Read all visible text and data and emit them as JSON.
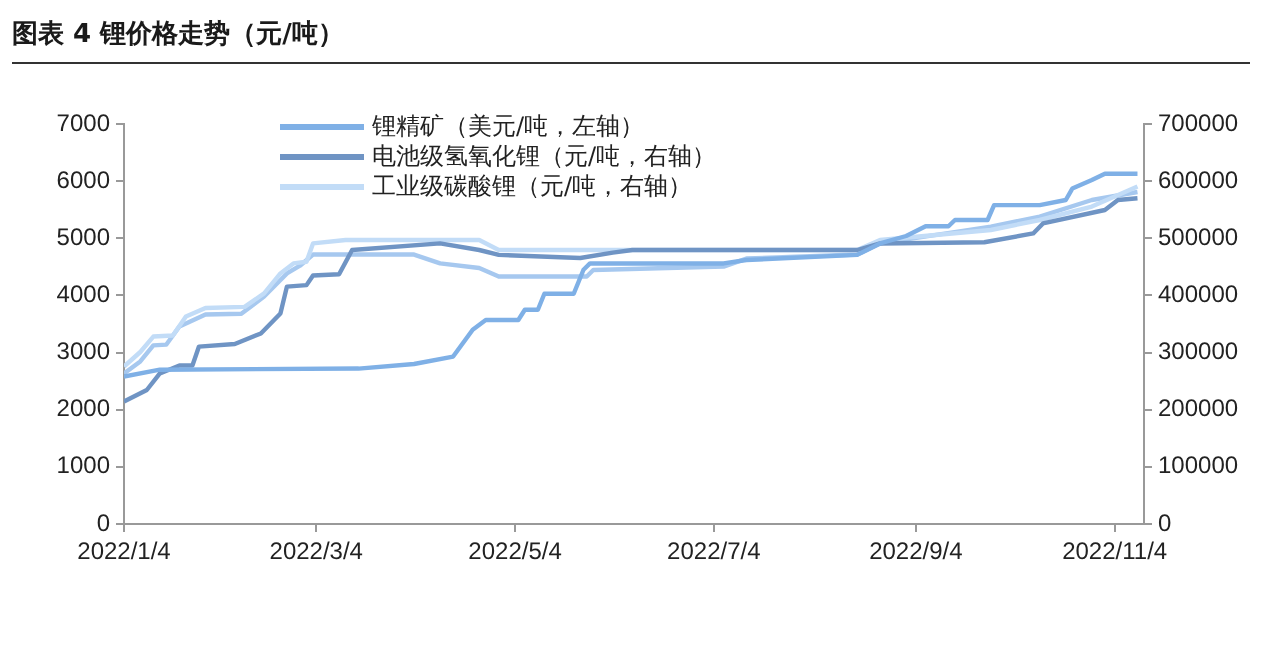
{
  "chart_data": {
    "type": "line",
    "title": "图表 4 锂价格走势（元/吨）",
    "xlim": [
      "2022-01-04",
      "2022-11-13"
    ],
    "xticks": [
      {
        "value": "2022-01-04",
        "label": "2022/1/4"
      },
      {
        "value": "2022-03-04",
        "label": "2022/3/4"
      },
      {
        "value": "2022-05-04",
        "label": "2022/5/4"
      },
      {
        "value": "2022-07-04",
        "label": "2022/7/4"
      },
      {
        "value": "2022-09-04",
        "label": "2022/9/4"
      },
      {
        "value": "2022-11-04",
        "label": "2022/11/4"
      }
    ],
    "ylim": [
      0,
      7000
    ],
    "yticks": [
      0,
      1000,
      2000,
      3000,
      4000,
      5000,
      6000,
      7000
    ],
    "y2lim": [
      0,
      700000
    ],
    "y2ticks": [
      0,
      100000,
      200000,
      300000,
      400000,
      500000,
      600000,
      700000
    ],
    "grid": false,
    "legend": "top",
    "marker": "none",
    "line_style": "solid",
    "series": [
      {
        "name": "锂精矿（美元/吨，左轴）",
        "color": "#7fb0e6",
        "axis": "y",
        "x": [
          "2022-01-04",
          "2022-01-15",
          "2022-03-17",
          "2022-04-03",
          "2022-04-15",
          "2022-04-21",
          "2022-04-25",
          "2022-05-05",
          "2022-05-07",
          "2022-05-11",
          "2022-05-13",
          "2022-05-22",
          "2022-05-25",
          "2022-05-27",
          "2022-07-07",
          "2022-07-14",
          "2022-08-17",
          "2022-08-24",
          "2022-09-01",
          "2022-09-07",
          "2022-09-14",
          "2022-09-16",
          "2022-09-26",
          "2022-09-28",
          "2022-10-12",
          "2022-10-20",
          "2022-10-22",
          "2022-10-28",
          "2022-11-01",
          "2022-11-11"
        ],
        "values": [
          2580,
          2700,
          2720,
          2800,
          2930,
          3400,
          3570,
          3570,
          3750,
          3750,
          4030,
          4030,
          4450,
          4560,
          4560,
          4620,
          4710,
          4910,
          5040,
          5210,
          5210,
          5320,
          5320,
          5580,
          5580,
          5670,
          5870,
          6020,
          6130,
          6130
        ]
      },
      {
        "name": "电池级氢氧化锂（元/吨，右轴）",
        "color": "#6f94c4",
        "axis": "y2",
        "x": [
          "2022-01-04",
          "2022-01-11",
          "2022-01-15",
          "2022-01-21",
          "2022-01-25",
          "2022-01-27",
          "2022-02-07",
          "2022-02-15",
          "2022-02-21",
          "2022-02-23",
          "2022-03-01",
          "2022-03-03",
          "2022-03-11",
          "2022-03-15",
          "2022-04-11",
          "2022-04-23",
          "2022-04-29",
          "2022-05-24",
          "2022-06-03",
          "2022-06-09",
          "2022-08-17",
          "2022-08-24",
          "2022-09-25",
          "2022-10-10",
          "2022-10-13",
          "2022-11-01",
          "2022-11-05",
          "2022-11-11"
        ],
        "values": [
          214500,
          234500,
          263500,
          277500,
          277500,
          310500,
          315000,
          333500,
          368500,
          415500,
          418000,
          435000,
          437000,
          479500,
          491000,
          479500,
          471000,
          465500,
          475000,
          479500,
          479500,
          491000,
          493000,
          508500,
          526000,
          549500,
          567000,
          570000
        ]
      },
      {
        "name": "工业级碳酸锂（元/吨，右轴）",
        "color": "#c2dcf7",
        "axis": "y2",
        "x": [
          "2022-01-04",
          "2022-01-09",
          "2022-01-13",
          "2022-01-19",
          "2022-01-23",
          "2022-01-29",
          "2022-02-10",
          "2022-02-16",
          "2022-02-21",
          "2022-02-25",
          "2022-03-01",
          "2022-03-03",
          "2022-03-13",
          "2022-04-23",
          "2022-04-29",
          "2022-08-17",
          "2022-08-24",
          "2022-09-27",
          "2022-10-12",
          "2022-10-28",
          "2022-11-11"
        ],
        "values": [
          275500,
          301000,
          328000,
          330000,
          363000,
          378000,
          380000,
          403500,
          438500,
          456000,
          459000,
          491000,
          497000,
          497000,
          479500,
          479500,
          497000,
          514500,
          532000,
          555500,
          590500
        ]
      },
      {
        "color": "#a6c8ef",
        "axis": "y2",
        "x": [
          "2022-01-04",
          "2022-01-09",
          "2022-01-13",
          "2022-01-17",
          "2022-01-21",
          "2022-01-29",
          "2022-02-09",
          "2022-02-16",
          "2022-02-23",
          "2022-02-27",
          "2022-03-03",
          "2022-04-03",
          "2022-04-11",
          "2022-04-23",
          "2022-04-29",
          "2022-05-26",
          "2022-05-28",
          "2022-07-07",
          "2022-07-14",
          "2022-08-17",
          "2022-08-24",
          "2022-09-27",
          "2022-10-12",
          "2022-10-28",
          "2022-11-11"
        ],
        "values": [
          263500,
          284500,
          312500,
          314000,
          345500,
          366500,
          368000,
          398000,
          438500,
          452000,
          471500,
          471500,
          456000,
          448000,
          433000,
          433000,
          444500,
          450500,
          464500,
          471500,
          491000,
          520500,
          538000,
          567000,
          581000
        ]
      }
    ]
  }
}
